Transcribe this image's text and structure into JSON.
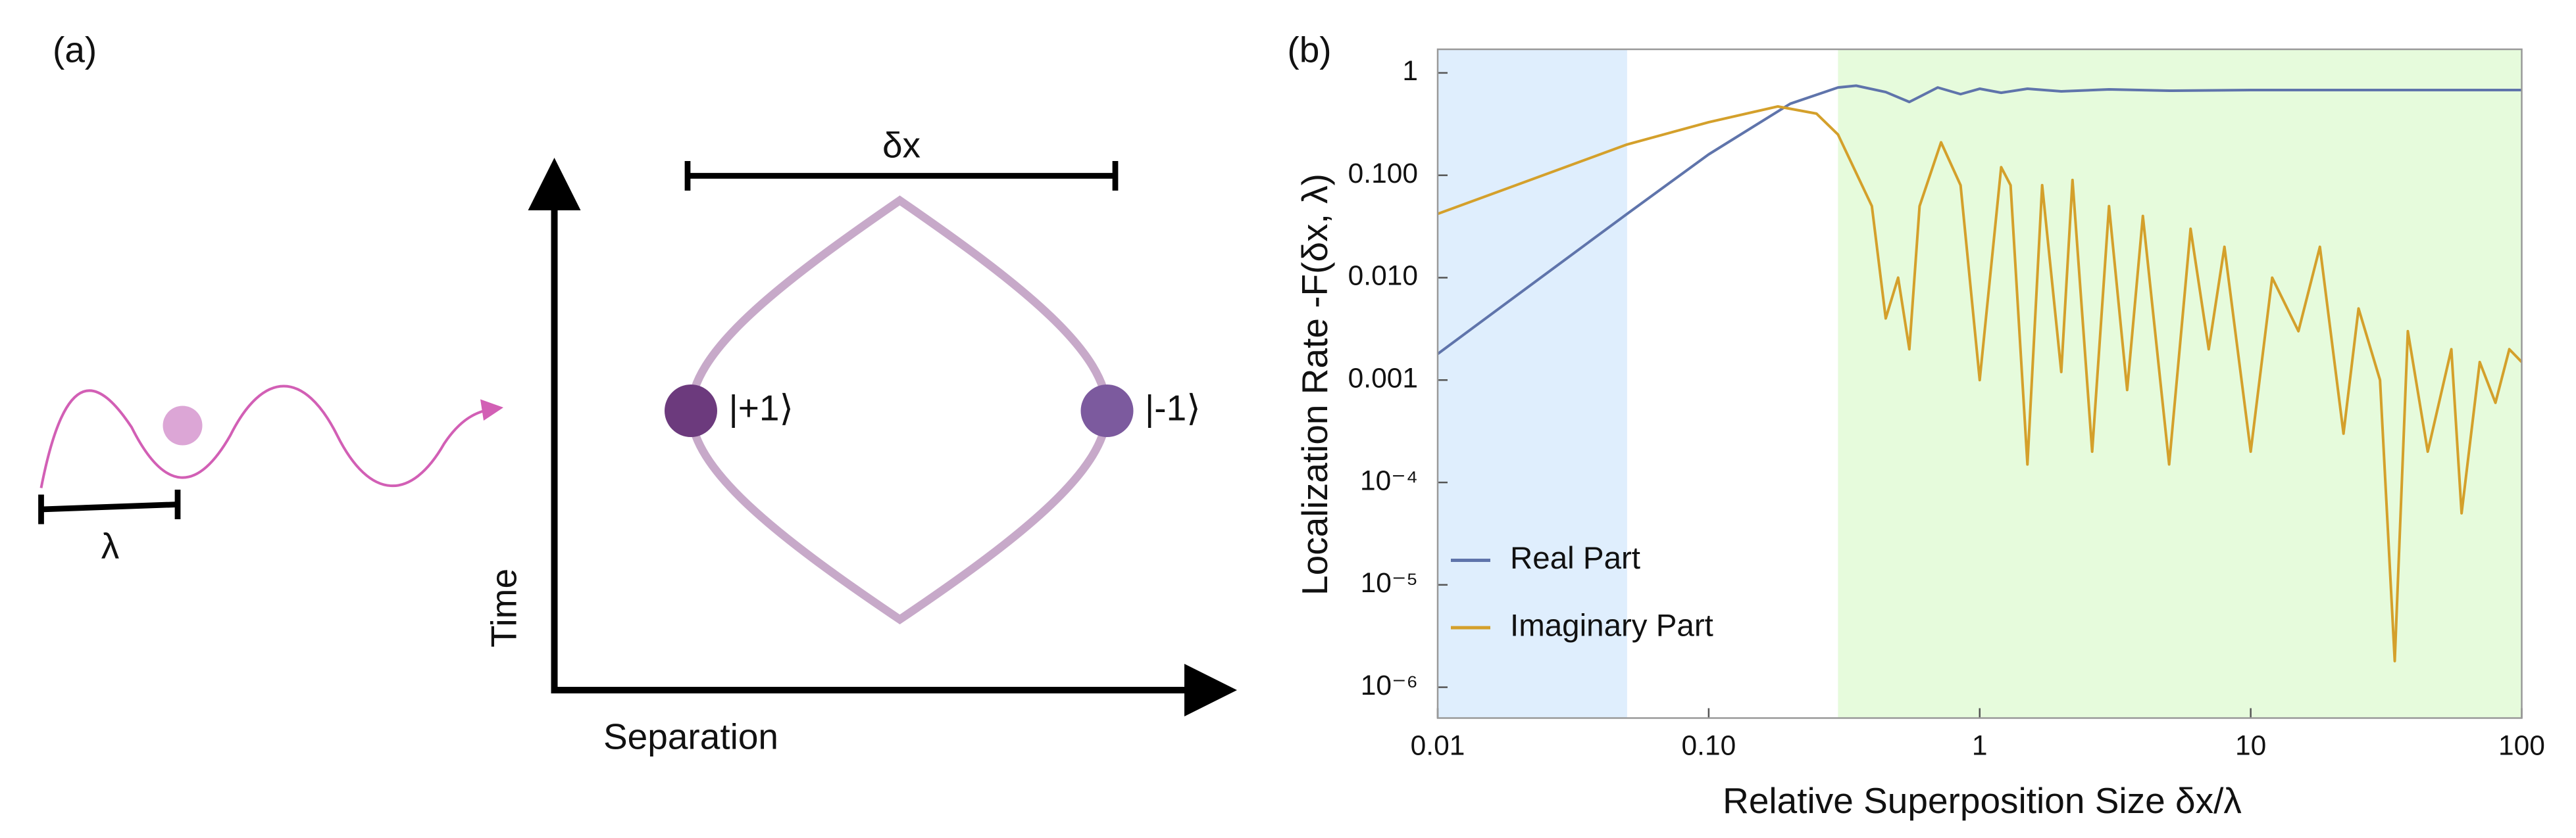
{
  "diagram": {
    "panel_label": "(a)",
    "wavelength_label": "λ",
    "separation_bar_label": "δx",
    "left_state": "|+1⟩",
    "right_state": "|-1⟩",
    "y_axis_label": "Time",
    "x_axis_label": "Separation"
  },
  "chart_data": {
    "type": "line",
    "panel_label": "(b)",
    "x_label": "Relative Superposition Size δx/λ",
    "y_label": "Localization Rate -F(δx, λ)",
    "xscale": "log",
    "yscale": "log",
    "xlim": [
      0.01,
      100
    ],
    "ylim": [
      5e-07,
      1.7
    ],
    "xticks": [
      0.01,
      {
        "value": 0.1,
        "label": "0.10"
      },
      1,
      10,
      100
    ],
    "yticks": [
      1,
      {
        "value": 0.1,
        "label": "0.100"
      },
      {
        "value": 0.01,
        "label": "0.010"
      },
      0.001,
      {
        "value": 0.0001,
        "label": "10⁻⁴"
      },
      {
        "value": 1e-05,
        "label": "10⁻⁵"
      },
      {
        "value": 1e-06,
        "label": "10⁻⁶"
      }
    ],
    "legend": "lower left",
    "regions": [
      {
        "xlim": [
          0.01,
          0.05
        ],
        "color": "#dfeefd"
      },
      {
        "xlim": [
          0.3,
          100
        ],
        "color": "#e6fbdc"
      }
    ],
    "series": [
      {
        "name": "Real Part",
        "color": "#5f74ab",
        "x": [
          0.01,
          0.02,
          0.05,
          0.1,
          0.2,
          0.3,
          0.35,
          0.45,
          0.55,
          0.7,
          0.85,
          1,
          1.2,
          1.5,
          2,
          3,
          5,
          10,
          100
        ],
        "values": [
          0.0018,
          0.007,
          0.042,
          0.16,
          0.5,
          0.72,
          0.75,
          0.65,
          0.52,
          0.72,
          0.62,
          0.7,
          0.64,
          0.7,
          0.66,
          0.69,
          0.67,
          0.68,
          0.68
        ]
      },
      {
        "name": "Imaginary Part",
        "color": "#d4a02b",
        "x": [
          0.01,
          0.05,
          0.1,
          0.18,
          0.25,
          0.3,
          0.4,
          0.45,
          0.5,
          0.55,
          0.6,
          0.72,
          0.85,
          1,
          1.2,
          1.3,
          1.5,
          1.7,
          2,
          2.2,
          2.6,
          3,
          3.5,
          4,
          5,
          6,
          7,
          8,
          10,
          12,
          15,
          18,
          22,
          25,
          30,
          34,
          38,
          45,
          55,
          60,
          70,
          80,
          90,
          100
        ],
        "values": [
          0.042,
          0.2,
          0.33,
          0.47,
          0.4,
          0.25,
          0.05,
          0.004,
          0.01,
          0.002,
          0.05,
          0.21,
          0.08,
          0.001,
          0.12,
          0.08,
          0.00015,
          0.08,
          0.0012,
          0.09,
          0.0002,
          0.05,
          0.0008,
          0.04,
          0.00015,
          0.03,
          0.002,
          0.02,
          0.0002,
          0.01,
          0.003,
          0.02,
          0.0003,
          0.005,
          0.001,
          1.8e-06,
          0.003,
          0.0002,
          0.002,
          5e-05,
          0.0015,
          0.0006,
          0.002,
          0.0015
        ]
      }
    ]
  }
}
